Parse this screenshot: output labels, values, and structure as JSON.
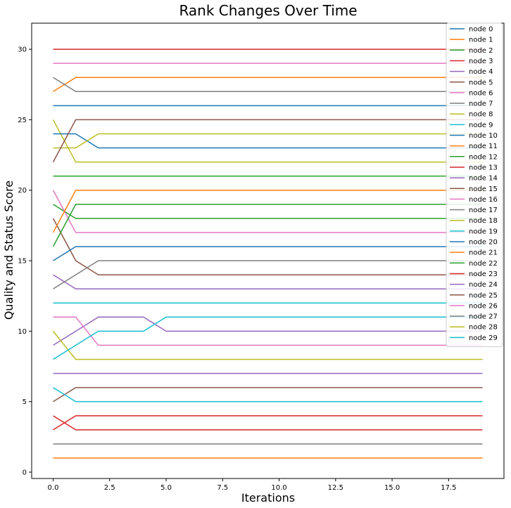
{
  "chart_data": {
    "type": "line",
    "title": "Rank Changes Over Time",
    "xlabel": "Iterations",
    "ylabel": "Quality and Status Score",
    "xlim": [
      -0.95,
      19.95
    ],
    "ylim": [
      -0.45,
      31.85
    ],
    "x_ticks": [
      0,
      2.5,
      5,
      7.5,
      10,
      12.5,
      15,
      17.5
    ],
    "x_tick_labels": [
      "0.0",
      "2.5",
      "5.0",
      "7.5",
      "10.0",
      "12.5",
      "15.0",
      "17.5"
    ],
    "y_ticks": [
      0,
      5,
      10,
      15,
      20,
      25,
      30
    ],
    "y_tick_labels": [
      "0",
      "5",
      "10",
      "15",
      "20",
      "25",
      "30"
    ],
    "grid": false,
    "legend_position": "top-right",
    "x": [
      0,
      1,
      2,
      3,
      4,
      5,
      6,
      7,
      8,
      9,
      10,
      11,
      12,
      13,
      14,
      15,
      16,
      17,
      18,
      19
    ],
    "series": [
      {
        "name": "node 0",
        "color": "#1f77b4",
        "values": [
          26,
          26,
          26,
          26,
          26,
          26,
          26,
          26,
          26,
          26,
          26,
          26,
          26,
          26,
          26,
          26,
          26,
          26,
          26,
          26
        ]
      },
      {
        "name": "node 1",
        "color": "#ff7f0e",
        "values": [
          1,
          1,
          1,
          1,
          1,
          1,
          1,
          1,
          1,
          1,
          1,
          1,
          1,
          1,
          1,
          1,
          1,
          1,
          1,
          1
        ]
      },
      {
        "name": "node 2",
        "color": "#2ca02c",
        "values": [
          21,
          21,
          21,
          21,
          21,
          21,
          21,
          21,
          21,
          21,
          21,
          21,
          21,
          21,
          21,
          21,
          21,
          21,
          21,
          21
        ]
      },
      {
        "name": "node 3",
        "color": "#d62728",
        "values": [
          4,
          3,
          3,
          3,
          3,
          3,
          3,
          3,
          3,
          3,
          3,
          3,
          3,
          3,
          3,
          3,
          3,
          3,
          3,
          3
        ]
      },
      {
        "name": "node 4",
        "color": "#9467bd",
        "values": [
          7,
          7,
          7,
          7,
          7,
          7,
          7,
          7,
          7,
          7,
          7,
          7,
          7,
          7,
          7,
          7,
          7,
          7,
          7,
          7
        ]
      },
      {
        "name": "node 5",
        "color": "#8c564b",
        "values": [
          5,
          6,
          6,
          6,
          6,
          6,
          6,
          6,
          6,
          6,
          6,
          6,
          6,
          6,
          6,
          6,
          6,
          6,
          6,
          6
        ]
      },
      {
        "name": "node 6",
        "color": "#e377c2",
        "values": [
          29,
          29,
          29,
          29,
          29,
          29,
          29,
          29,
          29,
          29,
          29,
          29,
          29,
          29,
          29,
          29,
          29,
          29,
          29,
          29
        ]
      },
      {
        "name": "node 7",
        "color": "#7f7f7f",
        "values": [
          2,
          2,
          2,
          2,
          2,
          2,
          2,
          2,
          2,
          2,
          2,
          2,
          2,
          2,
          2,
          2,
          2,
          2,
          2,
          2
        ]
      },
      {
        "name": "node 8",
        "color": "#bcbd22",
        "values": [
          25,
          22,
          22,
          22,
          22,
          22,
          22,
          22,
          22,
          22,
          22,
          22,
          22,
          22,
          22,
          22,
          22,
          22,
          22,
          22
        ]
      },
      {
        "name": "node 9",
        "color": "#17becf",
        "values": [
          12,
          12,
          12,
          12,
          12,
          12,
          12,
          12,
          12,
          12,
          12,
          12,
          12,
          12,
          12,
          12,
          12,
          12,
          12,
          12
        ]
      },
      {
        "name": "node 10",
        "color": "#1f77b4",
        "values": [
          24,
          24,
          23,
          23,
          23,
          23,
          23,
          23,
          23,
          23,
          23,
          23,
          23,
          23,
          23,
          23,
          23,
          23,
          23,
          23
        ]
      },
      {
        "name": "node 11",
        "color": "#ff7f0e",
        "values": [
          27,
          28,
          28,
          28,
          28,
          28,
          28,
          28,
          28,
          28,
          28,
          28,
          28,
          28,
          28,
          28,
          28,
          28,
          28,
          28
        ]
      },
      {
        "name": "node 12",
        "color": "#2ca02c",
        "values": [
          19,
          18,
          18,
          18,
          18,
          18,
          18,
          18,
          18,
          18,
          18,
          18,
          18,
          18,
          18,
          18,
          18,
          18,
          18,
          18
        ]
      },
      {
        "name": "node 13",
        "color": "#d62728",
        "values": [
          30,
          30,
          30,
          30,
          30,
          30,
          30,
          30,
          30,
          30,
          30,
          30,
          30,
          30,
          30,
          30,
          30,
          30,
          30,
          30
        ]
      },
      {
        "name": "node 14",
        "color": "#9467bd",
        "values": [
          14,
          13,
          13,
          13,
          13,
          13,
          13,
          13,
          13,
          13,
          13,
          13,
          13,
          13,
          13,
          13,
          13,
          13,
          13,
          13
        ]
      },
      {
        "name": "node 15",
        "color": "#8c564b",
        "values": [
          18,
          15,
          14,
          14,
          14,
          14,
          14,
          14,
          14,
          14,
          14,
          14,
          14,
          14,
          14,
          14,
          14,
          14,
          14,
          14
        ]
      },
      {
        "name": "node 16",
        "color": "#e377c2",
        "values": [
          20,
          17,
          17,
          17,
          17,
          17,
          17,
          17,
          17,
          17,
          17,
          17,
          17,
          17,
          17,
          17,
          17,
          17,
          17,
          17
        ]
      },
      {
        "name": "node 17",
        "color": "#7f7f7f",
        "values": [
          28,
          27,
          27,
          27,
          27,
          27,
          27,
          27,
          27,
          27,
          27,
          27,
          27,
          27,
          27,
          27,
          27,
          27,
          27,
          27
        ]
      },
      {
        "name": "node 18",
        "color": "#bcbd22",
        "values": [
          23,
          23,
          24,
          24,
          24,
          24,
          24,
          24,
          24,
          24,
          24,
          24,
          24,
          24,
          24,
          24,
          24,
          24,
          24,
          24
        ]
      },
      {
        "name": "node 19",
        "color": "#17becf",
        "values": [
          6,
          5,
          5,
          5,
          5,
          5,
          5,
          5,
          5,
          5,
          5,
          5,
          5,
          5,
          5,
          5,
          5,
          5,
          5,
          5
        ]
      },
      {
        "name": "node 20",
        "color": "#1f77b4",
        "values": [
          15,
          16,
          16,
          16,
          16,
          16,
          16,
          16,
          16,
          16,
          16,
          16,
          16,
          16,
          16,
          16,
          16,
          16,
          16,
          16
        ]
      },
      {
        "name": "node 21",
        "color": "#ff7f0e",
        "values": [
          17,
          20,
          20,
          20,
          20,
          20,
          20,
          20,
          20,
          20,
          20,
          20,
          20,
          20,
          20,
          20,
          20,
          20,
          20,
          20
        ]
      },
      {
        "name": "node 22",
        "color": "#2ca02c",
        "values": [
          16,
          19,
          19,
          19,
          19,
          19,
          19,
          19,
          19,
          19,
          19,
          19,
          19,
          19,
          19,
          19,
          19,
          19,
          19,
          19
        ]
      },
      {
        "name": "node 23",
        "color": "#d62728",
        "values": [
          3,
          4,
          4,
          4,
          4,
          4,
          4,
          4,
          4,
          4,
          4,
          4,
          4,
          4,
          4,
          4,
          4,
          4,
          4,
          4
        ]
      },
      {
        "name": "node 24",
        "color": "#9467bd",
        "values": [
          9,
          10,
          11,
          11,
          11,
          10,
          10,
          10,
          10,
          10,
          10,
          10,
          10,
          10,
          10,
          10,
          10,
          10,
          10,
          10
        ]
      },
      {
        "name": "node 25",
        "color": "#8c564b",
        "values": [
          22,
          25,
          25,
          25,
          25,
          25,
          25,
          25,
          25,
          25,
          25,
          25,
          25,
          25,
          25,
          25,
          25,
          25,
          25,
          25
        ]
      },
      {
        "name": "node 26",
        "color": "#e377c2",
        "values": [
          11,
          11,
          9,
          9,
          9,
          9,
          9,
          9,
          9,
          9,
          9,
          9,
          9,
          9,
          9,
          9,
          9,
          9,
          9,
          9
        ]
      },
      {
        "name": "node 27",
        "color": "#7f7f7f",
        "values": [
          13,
          14,
          15,
          15,
          15,
          15,
          15,
          15,
          15,
          15,
          15,
          15,
          15,
          15,
          15,
          15,
          15,
          15,
          15,
          15
        ]
      },
      {
        "name": "node 28",
        "color": "#bcbd22",
        "values": [
          10,
          8,
          8,
          8,
          8,
          8,
          8,
          8,
          8,
          8,
          8,
          8,
          8,
          8,
          8,
          8,
          8,
          8,
          8,
          8
        ]
      },
      {
        "name": "node 29",
        "color": "#17becf",
        "values": [
          8,
          9,
          10,
          10,
          10,
          11,
          11,
          11,
          11,
          11,
          11,
          11,
          11,
          11,
          11,
          11,
          11,
          11,
          11,
          11
        ]
      }
    ]
  }
}
